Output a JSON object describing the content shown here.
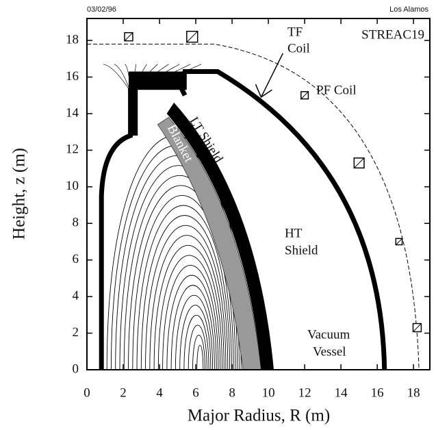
{
  "chart_data": {
    "type": "contour",
    "header_date": "03/02/96",
    "header_lab": "Los Alamos",
    "title": "STREAC19",
    "xlabel": "Major Radius, R (m)",
    "ylabel": "Height, z (m)",
    "xlim": [
      0,
      18.9
    ],
    "ylim": [
      0,
      19.2
    ],
    "xticks": [
      0,
      2,
      4,
      6,
      8,
      10,
      12,
      14,
      16,
      18
    ],
    "yticks": [
      0,
      2,
      4,
      6,
      8,
      10,
      12,
      14,
      16,
      18
    ],
    "annotations": [
      "TF",
      "Coil",
      "PF Coil",
      "LT Shield",
      "Blanket",
      "HT",
      "Shield",
      "Vacuum",
      "Vessel"
    ]
  }
}
